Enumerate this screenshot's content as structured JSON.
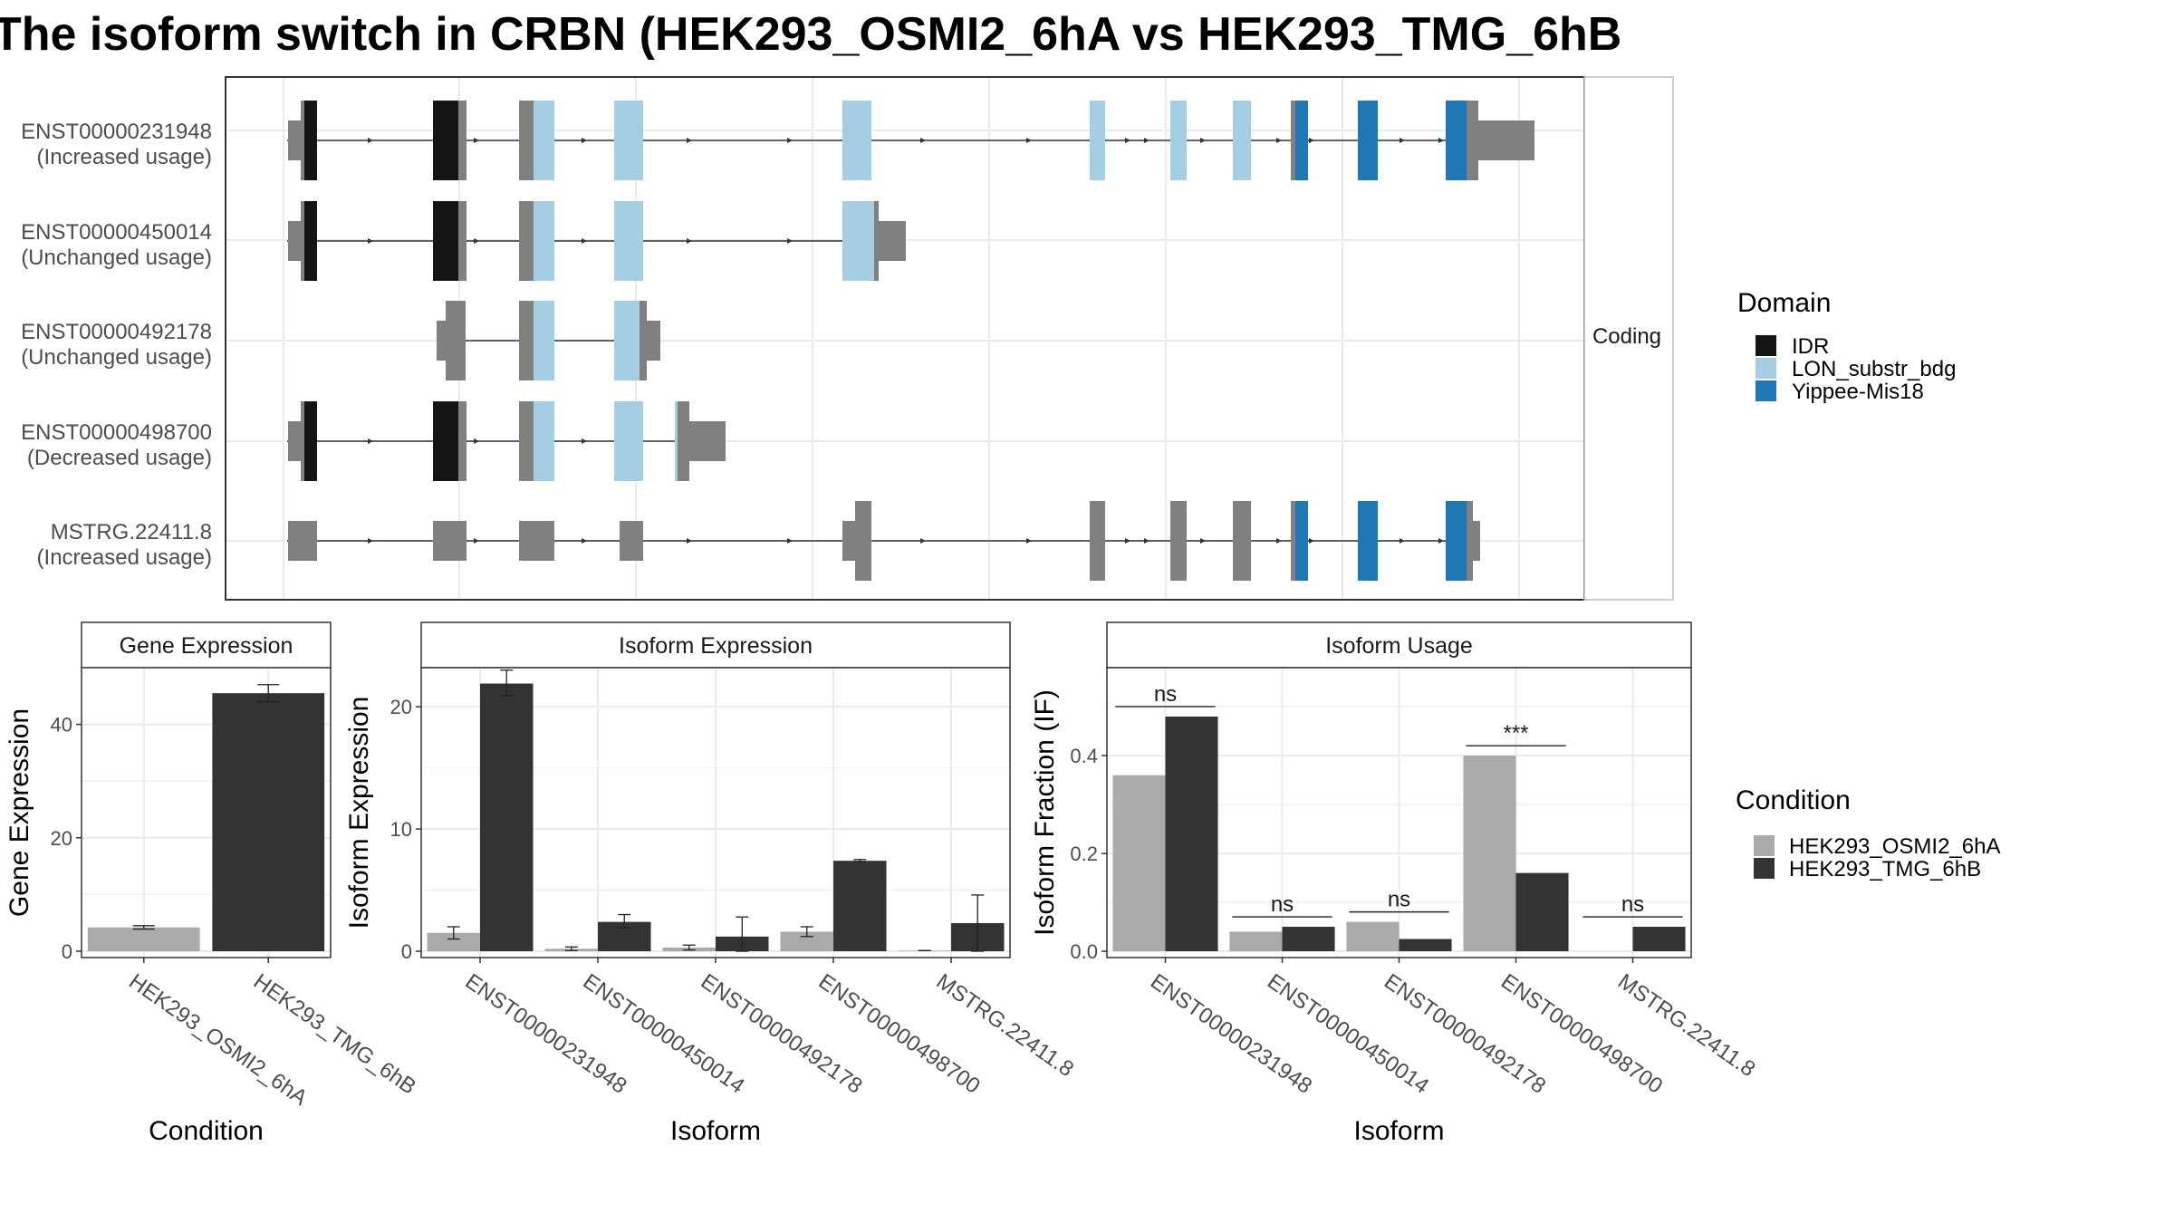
{
  "title": "The isoform switch in CRBN (HEK293_OSMI2_6hA vs HEK293_TMG_6hB",
  "structure": {
    "strip_label": "Coding",
    "transcripts": [
      {
        "id": "ENST00000231948",
        "usage": "(Increased usage)"
      },
      {
        "id": "ENST00000450014",
        "usage": "(Unchanged usage)"
      },
      {
        "id": "ENST00000492178",
        "usage": "(Unchanged usage)"
      },
      {
        "id": "ENST00000498700",
        "usage": "(Decreased usage)"
      },
      {
        "id": "MSTRG.22411.8",
        "usage": "(Increased usage)"
      }
    ]
  },
  "domain_legend": {
    "title": "Domain",
    "items": [
      {
        "label": "IDR",
        "color": "#141414"
      },
      {
        "label": "LON_substr_bdg",
        "color": "#a6cee3"
      },
      {
        "label": "Yippee-Mis18",
        "color": "#1f78b4"
      }
    ]
  },
  "condition_legend": {
    "title": "Condition",
    "items": [
      {
        "label": "HEK293_OSMI2_6hA",
        "color": "#aaaaaa"
      },
      {
        "label": "HEK293_TMG_6hB",
        "color": "#333333"
      }
    ]
  },
  "colors": {
    "utr": "#808080",
    "cond_a": "#aaaaaa",
    "cond_b": "#333333"
  },
  "chart_data": [
    {
      "type": "bar",
      "panel": "Gene Expression",
      "xlabel": "Condition",
      "ylabel": "Gene Expression",
      "ylim": [
        0,
        50
      ],
      "yticks": [
        0,
        20,
        40
      ],
      "categories": [
        "HEK293_OSMI2_6hA",
        "HEK293_TMG_6hB"
      ],
      "values": [
        4.2,
        45.5
      ],
      "error": [
        [
          3.9,
          4.5
        ],
        [
          44.0,
          47.0
        ]
      ]
    },
    {
      "type": "bar",
      "panel": "Isoform Expression",
      "xlabel": "Isoform",
      "ylabel": "Isoform Expression",
      "ylim": [
        0,
        23.2
      ],
      "yticks": [
        0,
        10,
        20
      ],
      "categories": [
        "ENST00000231948",
        "ENST00000450014",
        "ENST00000492178",
        "ENST00000498700",
        "MSTRG.22411.8"
      ],
      "series": [
        {
          "name": "HEK293_OSMI2_6hA",
          "values": [
            1.5,
            0.2,
            0.3,
            1.6,
            0.05
          ],
          "error": [
            [
              1.0,
              2.0
            ],
            [
              0.05,
              0.35
            ],
            [
              0.1,
              0.5
            ],
            [
              1.2,
              2.0
            ],
            [
              0.05,
              0.05
            ]
          ]
        },
        {
          "name": "HEK293_TMG_6hB",
          "values": [
            21.9,
            2.4,
            1.2,
            7.4,
            2.3
          ],
          "error": [
            [
              20.9,
              23.0
            ],
            [
              1.9,
              3.0
            ],
            [
              0.0,
              2.8
            ],
            [
              7.3,
              7.5
            ],
            [
              0.0,
              4.6
            ]
          ]
        }
      ]
    },
    {
      "type": "bar",
      "panel": "Isoform Usage",
      "xlabel": "Isoform",
      "ylabel": "Isoform Fraction (IF)",
      "ylim": [
        0,
        0.58
      ],
      "yticks": [
        0.0,
        0.2,
        0.4
      ],
      "categories": [
        "ENST00000231948",
        "ENST00000450014",
        "ENST00000492178",
        "ENST00000498700",
        "MSTRG.22411.8"
      ],
      "series": [
        {
          "name": "HEK293_OSMI2_6hA",
          "values": [
            0.36,
            0.04,
            0.06,
            0.4,
            0.0
          ]
        },
        {
          "name": "HEK293_TMG_6hB",
          "values": [
            0.48,
            0.05,
            0.025,
            0.16,
            0.05
          ]
        }
      ],
      "significance": [
        "ns",
        "ns",
        "ns",
        "***",
        "ns"
      ]
    }
  ]
}
